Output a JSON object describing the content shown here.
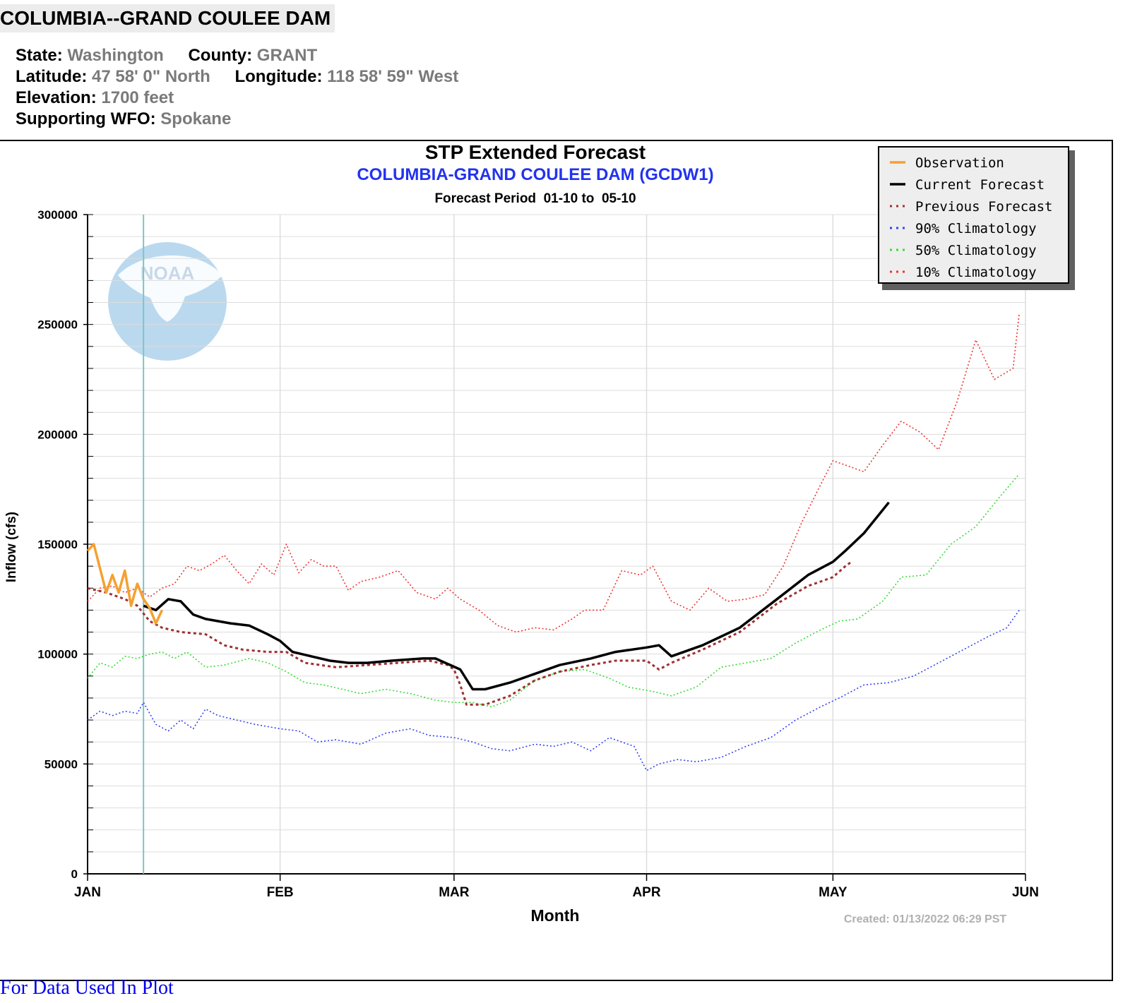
{
  "station": {
    "title": "COLUMBIA--GRAND COULEE DAM",
    "state_label": "State:",
    "state": "Washington",
    "county_label": "County:",
    "county": "GRANT",
    "lat_label": "Latitude:",
    "lat": "47 58' 0\" North",
    "lon_label": "Longitude:",
    "lon": "118 58' 59\" West",
    "elev_label": "Elevation:",
    "elev": "1700 feet",
    "wfo_label": "Supporting WFO:",
    "wfo": "Spokane"
  },
  "link": {
    "text": "For Data Used In Plot"
  },
  "chart_data": {
    "type": "line",
    "title": "STP Extended Forecast",
    "subtitle": "COLUMBIA-GRAND COULEE DAM (GCDW1)",
    "period": "Forecast Period  01-10 to  05-10",
    "xlabel": "Month",
    "ylabel": "Inflow (cfs)",
    "created": "Created: 01/13/2022 06:29 PST",
    "watermark": "NOAA",
    "ylim": [
      0,
      300000
    ],
    "yticks": [
      0,
      50000,
      100000,
      150000,
      200000,
      250000,
      300000
    ],
    "ytick_labels": [
      "0",
      "50000",
      "100000",
      "150000",
      "200000",
      "250000",
      "300000"
    ],
    "months": [
      "JAN",
      "FEB",
      "MAR",
      "APR",
      "MAY",
      "JUN"
    ],
    "xlim": [
      "2022-01-01",
      "2022-06-01"
    ],
    "current_date": "2022-01-10",
    "legend_position": "top-right",
    "series": [
      {
        "name": "Observation",
        "color": "#f5a030",
        "style": "solid",
        "x": [
          "2022-01-01",
          "2022-01-02",
          "2022-01-04",
          "2022-01-05",
          "2022-01-06",
          "2022-01-07",
          "2022-01-08",
          "2022-01-09",
          "2022-01-10",
          "2022-01-11",
          "2022-01-12",
          "2022-01-13"
        ],
        "y": [
          147000,
          150000,
          128000,
          136000,
          128000,
          138000,
          122000,
          132000,
          125000,
          121000,
          114000,
          120000
        ]
      },
      {
        "name": "Current Forecast",
        "color": "#000000",
        "style": "solid",
        "x": [
          "2022-01-10",
          "2022-01-12",
          "2022-01-14",
          "2022-01-16",
          "2022-01-18",
          "2022-01-20",
          "2022-01-24",
          "2022-01-27",
          "2022-01-30",
          "2022-02-01",
          "2022-02-03",
          "2022-02-06",
          "2022-02-09",
          "2022-02-12",
          "2022-02-15",
          "2022-02-19",
          "2022-02-24",
          "2022-02-26",
          "2022-03-02",
          "2022-03-04",
          "2022-03-06",
          "2022-03-10",
          "2022-03-14",
          "2022-03-18",
          "2022-03-23",
          "2022-03-27",
          "2022-04-01",
          "2022-04-03",
          "2022-04-05",
          "2022-04-10",
          "2022-04-16",
          "2022-04-22",
          "2022-04-27",
          "2022-05-01",
          "2022-05-03",
          "2022-05-06",
          "2022-05-10"
        ],
        "y": [
          122000,
          120000,
          125000,
          124000,
          118000,
          116000,
          114000,
          113000,
          109000,
          106000,
          101000,
          99000,
          97000,
          96000,
          96000,
          97000,
          98000,
          98000,
          93000,
          84000,
          84000,
          87000,
          91000,
          95000,
          98000,
          101000,
          103000,
          104000,
          99000,
          104000,
          112000,
          125000,
          136000,
          142000,
          147000,
          155000,
          169000
        ]
      },
      {
        "name": "Previous Forecast",
        "color": "#a03030",
        "style": "dotted",
        "x": [
          "2022-01-01",
          "2022-01-04",
          "2022-01-07",
          "2022-01-09",
          "2022-01-11",
          "2022-01-13",
          "2022-01-16",
          "2022-01-20",
          "2022-01-23",
          "2022-01-26",
          "2022-01-30",
          "2022-02-02",
          "2022-02-05",
          "2022-02-10",
          "2022-02-15",
          "2022-02-20",
          "2022-02-25",
          "2022-02-28",
          "2022-03-01",
          "2022-03-02",
          "2022-03-03",
          "2022-03-06",
          "2022-03-10",
          "2022-03-14",
          "2022-03-18",
          "2022-03-23",
          "2022-03-27",
          "2022-04-01",
          "2022-04-03",
          "2022-04-05",
          "2022-04-10",
          "2022-04-16",
          "2022-04-22",
          "2022-04-27",
          "2022-05-01",
          "2022-05-03",
          "2022-05-04"
        ],
        "y": [
          130000,
          128000,
          125000,
          122000,
          115000,
          112000,
          110000,
          109000,
          104000,
          102000,
          101000,
          101000,
          96000,
          94000,
          95000,
          96000,
          97000,
          95000,
          93000,
          86000,
          77000,
          77000,
          81000,
          88000,
          92000,
          95000,
          97000,
          97000,
          93000,
          96000,
          102000,
          110000,
          123000,
          131000,
          135000,
          140000,
          142000
        ]
      },
      {
        "name": "90% Climatology",
        "color": "#3344ee",
        "style": "dotted",
        "x": [
          "2022-01-01",
          "2022-01-03",
          "2022-01-05",
          "2022-01-07",
          "2022-01-09",
          "2022-01-10",
          "2022-01-12",
          "2022-01-14",
          "2022-01-16",
          "2022-01-18",
          "2022-01-20",
          "2022-01-22",
          "2022-01-25",
          "2022-01-28",
          "2022-02-01",
          "2022-02-04",
          "2022-02-07",
          "2022-02-10",
          "2022-02-14",
          "2022-02-18",
          "2022-02-22",
          "2022-02-25",
          "2022-03-01",
          "2022-03-04",
          "2022-03-07",
          "2022-03-10",
          "2022-03-14",
          "2022-03-17",
          "2022-03-20",
          "2022-03-23",
          "2022-03-26",
          "2022-03-30",
          "2022-04-01",
          "2022-04-03",
          "2022-04-06",
          "2022-04-09",
          "2022-04-13",
          "2022-04-17",
          "2022-04-21",
          "2022-04-25",
          "2022-04-29",
          "2022-05-02",
          "2022-05-06",
          "2022-05-10",
          "2022-05-14",
          "2022-05-18",
          "2022-05-22",
          "2022-05-26",
          "2022-05-29",
          "2022-05-31"
        ],
        "y": [
          70000,
          74000,
          72000,
          74000,
          73000,
          78000,
          68000,
          65000,
          70000,
          66000,
          75000,
          72000,
          70000,
          68000,
          66000,
          65000,
          60000,
          61000,
          59000,
          64000,
          66000,
          63000,
          62000,
          60000,
          57000,
          56000,
          59000,
          58000,
          60000,
          56000,
          62000,
          58000,
          47000,
          50000,
          52000,
          51000,
          53000,
          58000,
          62000,
          70000,
          76000,
          80000,
          86000,
          87000,
          90000,
          96000,
          102000,
          108000,
          112000,
          120000
        ]
      },
      {
        "name": "50% Climatology",
        "color": "#33dd33",
        "style": "dotted",
        "x": [
          "2022-01-01",
          "2022-01-03",
          "2022-01-05",
          "2022-01-07",
          "2022-01-09",
          "2022-01-11",
          "2022-01-13",
          "2022-01-15",
          "2022-01-17",
          "2022-01-20",
          "2022-01-23",
          "2022-01-27",
          "2022-01-30",
          "2022-02-02",
          "2022-02-05",
          "2022-02-08",
          "2022-02-11",
          "2022-02-14",
          "2022-02-18",
          "2022-02-22",
          "2022-02-26",
          "2022-03-01",
          "2022-03-04",
          "2022-03-07",
          "2022-03-10",
          "2022-03-14",
          "2022-03-18",
          "2022-03-22",
          "2022-03-26",
          "2022-03-29",
          "2022-04-02",
          "2022-04-05",
          "2022-04-09",
          "2022-04-13",
          "2022-04-17",
          "2022-04-21",
          "2022-04-25",
          "2022-04-29",
          "2022-05-02",
          "2022-05-05",
          "2022-05-09",
          "2022-05-12",
          "2022-05-16",
          "2022-05-20",
          "2022-05-24",
          "2022-05-28",
          "2022-05-31"
        ],
        "y": [
          89000,
          96000,
          94000,
          99000,
          98000,
          100000,
          101000,
          98000,
          101000,
          94000,
          95000,
          98000,
          96000,
          92000,
          87000,
          86000,
          84000,
          82000,
          84000,
          82000,
          79000,
          78000,
          78000,
          76000,
          79000,
          88000,
          92000,
          93000,
          89000,
          85000,
          83000,
          81000,
          85000,
          94000,
          96000,
          98000,
          105000,
          111000,
          115000,
          116000,
          124000,
          135000,
          136000,
          150000,
          158000,
          172000,
          182000
        ]
      },
      {
        "name": "10% Climatology",
        "color": "#ee3333",
        "style": "dotted",
        "x": [
          "2022-01-01",
          "2022-01-03",
          "2022-01-05",
          "2022-01-07",
          "2022-01-09",
          "2022-01-11",
          "2022-01-13",
          "2022-01-15",
          "2022-01-17",
          "2022-01-19",
          "2022-01-21",
          "2022-01-23",
          "2022-01-25",
          "2022-01-27",
          "2022-01-29",
          "2022-01-31",
          "2022-02-02",
          "2022-02-04",
          "2022-02-06",
          "2022-02-08",
          "2022-02-10",
          "2022-02-12",
          "2022-02-14",
          "2022-02-17",
          "2022-02-20",
          "2022-02-23",
          "2022-02-26",
          "2022-02-28",
          "2022-03-02",
          "2022-03-05",
          "2022-03-08",
          "2022-03-11",
          "2022-03-14",
          "2022-03-17",
          "2022-03-20",
          "2022-03-22",
          "2022-03-25",
          "2022-03-28",
          "2022-03-31",
          "2022-04-02",
          "2022-04-05",
          "2022-04-08",
          "2022-04-11",
          "2022-04-14",
          "2022-04-17",
          "2022-04-20",
          "2022-04-23",
          "2022-04-26",
          "2022-04-29",
          "2022-05-01",
          "2022-05-03",
          "2022-05-06",
          "2022-05-09",
          "2022-05-12",
          "2022-05-15",
          "2022-05-18",
          "2022-05-21",
          "2022-05-24",
          "2022-05-27",
          "2022-05-30",
          "2022-05-31"
        ],
        "y": [
          124000,
          130000,
          131000,
          128000,
          130000,
          126000,
          130000,
          132000,
          140000,
          138000,
          141000,
          145000,
          138000,
          132000,
          141000,
          136000,
          150000,
          137000,
          143000,
          140000,
          140000,
          129000,
          133000,
          135000,
          138000,
          128000,
          125000,
          130000,
          125000,
          120000,
          113000,
          110000,
          112000,
          111000,
          116000,
          120000,
          120000,
          138000,
          136000,
          140000,
          124000,
          120000,
          130000,
          124000,
          125000,
          127000,
          140000,
          160000,
          177000,
          188000,
          186000,
          183000,
          195000,
          206000,
          201000,
          193000,
          215000,
          243000,
          225000,
          230000,
          255000
        ]
      }
    ]
  }
}
